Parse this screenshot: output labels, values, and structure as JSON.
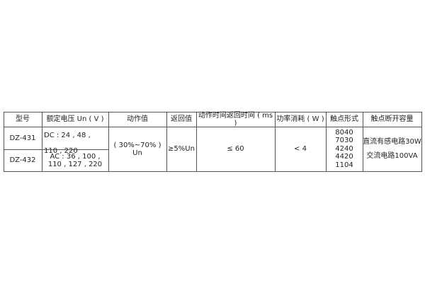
{
  "table": {
    "headers": [
      "型号",
      "额定电压 Un ( V )",
      "动作值",
      "返回值",
      "动作时间返回时间 ( ms )",
      "功率消耗 ( W )",
      "触点形式",
      "触点断开容量"
    ],
    "rows": [
      {
        "model": "DZ-431",
        "voltage": "DC : 24 , 48 , 110 , 220"
      },
      {
        "model": "DZ-432",
        "voltage": "AC : 36 , 100 , 110 , 127 , 220"
      }
    ],
    "action_value": "( 30%~70% ) Un",
    "return_value": "≥5%Un",
    "time": "≤ 60",
    "power": "< 4",
    "contacts": [
      "8040",
      "7030",
      "4240",
      "4420",
      "1104"
    ],
    "capacity": [
      "直流有感电路30W",
      "交流电路100VA"
    ]
  }
}
